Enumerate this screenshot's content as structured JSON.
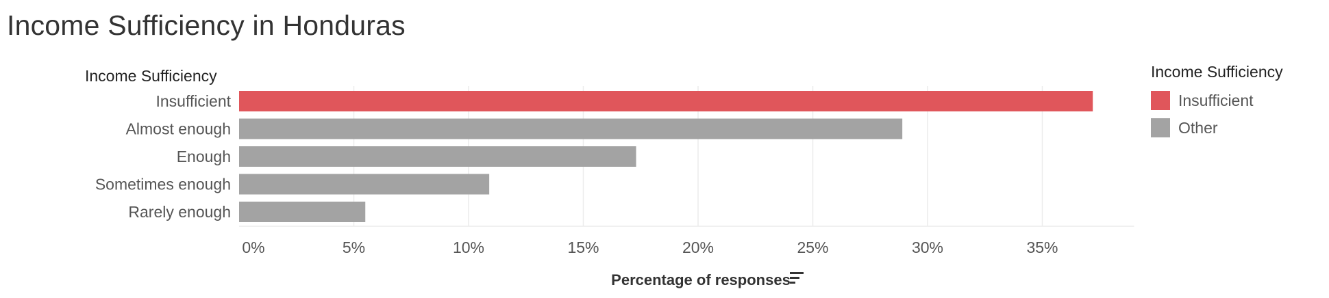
{
  "page": {
    "title": "Income Sufficiency in Honduras"
  },
  "colors": {
    "insufficient": "#e0565b",
    "other": "#a3a3a3",
    "grid": "#ececec"
  },
  "legend": {
    "title": "Income Sufficiency",
    "items": [
      {
        "label": "Insufficient",
        "color": "#e0565b"
      },
      {
        "label": "Other",
        "color": "#a3a3a3"
      }
    ]
  },
  "chart_data": {
    "type": "bar",
    "orientation": "horizontal",
    "title": "Income Sufficiency in Honduras",
    "category_header": "Income Sufficiency",
    "xlabel": "Percentage of responses",
    "categories": [
      "Insufficient",
      "Almost enough",
      "Enough",
      "Sometimes enough",
      "Rarely enough"
    ],
    "values": [
      37.2,
      28.9,
      17.3,
      10.9,
      5.5
    ],
    "groups": [
      "Insufficient",
      "Other",
      "Other",
      "Other",
      "Other"
    ],
    "xlim": [
      0,
      39
    ],
    "xticks": [
      0,
      5,
      10,
      15,
      20,
      25,
      30,
      35
    ],
    "xtick_labels": [
      "0%",
      "5%",
      "10%",
      "15%",
      "20%",
      "25%",
      "30%",
      "35%"
    ],
    "grid": "vertical",
    "legend_position": "right"
  }
}
